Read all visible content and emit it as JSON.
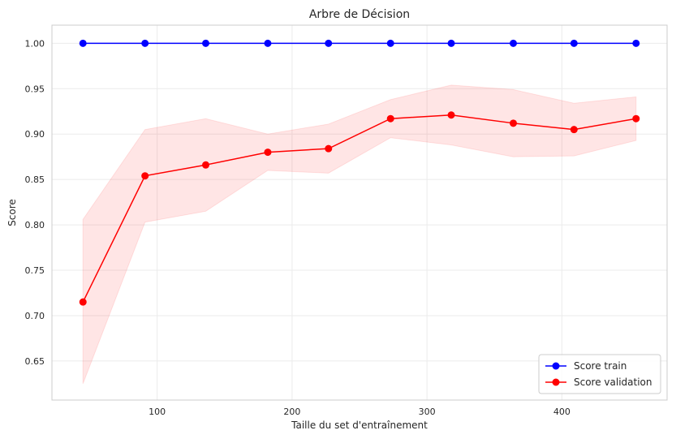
{
  "chart_data": {
    "type": "line",
    "title": "Arbre de Décision",
    "xlabel": "Taille du set d'entraînement",
    "ylabel": "Score",
    "xlim": [
      22,
      478
    ],
    "ylim": [
      0.607,
      1.02
    ],
    "xticks": [
      100,
      200,
      300,
      400
    ],
    "yticks": [
      0.65,
      0.7,
      0.75,
      0.8,
      0.85,
      0.9,
      0.95,
      1.0
    ],
    "grid": true,
    "legend_position": "bottom-right",
    "x": [
      45,
      91,
      136,
      182,
      227,
      273,
      318,
      364,
      409,
      455
    ],
    "series": [
      {
        "name": "Score train",
        "color": "#0000ff",
        "values": [
          1.0,
          1.0,
          1.0,
          1.0,
          1.0,
          1.0,
          1.0,
          1.0,
          1.0,
          1.0
        ],
        "band_low": [
          1.0,
          1.0,
          1.0,
          1.0,
          1.0,
          1.0,
          1.0,
          1.0,
          1.0,
          1.0
        ],
        "band_high": [
          1.0,
          1.0,
          1.0,
          1.0,
          1.0,
          1.0,
          1.0,
          1.0,
          1.0,
          1.0
        ]
      },
      {
        "name": "Score validation",
        "color": "#ff0000",
        "values": [
          0.715,
          0.854,
          0.866,
          0.88,
          0.884,
          0.917,
          0.921,
          0.912,
          0.905,
          0.917
        ],
        "band_low": [
          0.625,
          0.803,
          0.815,
          0.86,
          0.857,
          0.896,
          0.888,
          0.875,
          0.876,
          0.893
        ],
        "band_high": [
          0.806,
          0.905,
          0.917,
          0.9,
          0.911,
          0.938,
          0.954,
          0.949,
          0.934,
          0.941
        ]
      }
    ]
  }
}
